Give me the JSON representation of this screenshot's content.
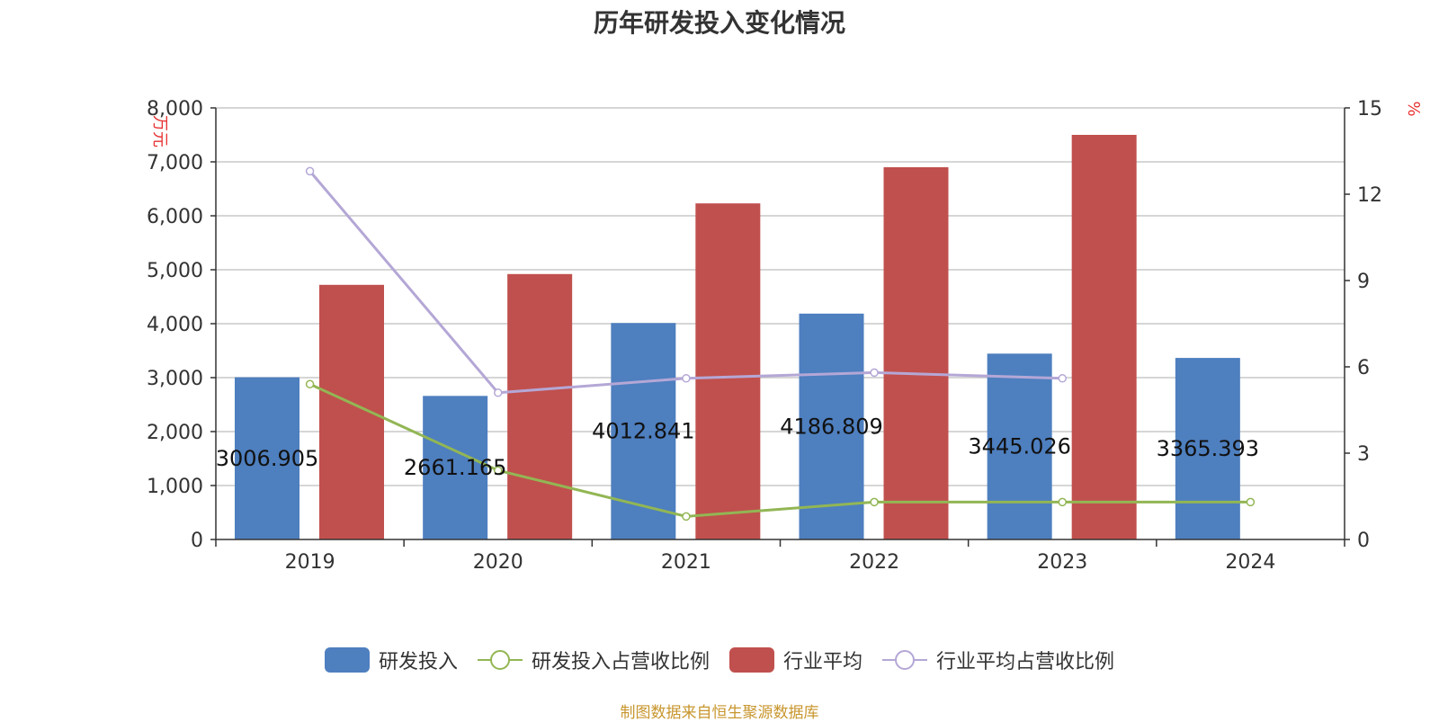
{
  "chart_data": {
    "type": "bar",
    "title": "历年研发投入变化情况",
    "categories": [
      "2019",
      "2020",
      "2021",
      "2022",
      "2023",
      "2024"
    ],
    "y_left": {
      "label": "万元",
      "ylim": [
        0,
        8000
      ],
      "ticks": [
        "0",
        "1,000",
        "2,000",
        "3,000",
        "4,000",
        "5,000",
        "6,000",
        "7,000",
        "8,000"
      ]
    },
    "y_right": {
      "label": "%",
      "ylim": [
        0,
        15
      ],
      "ticks": [
        "0",
        "3",
        "6",
        "9",
        "12",
        "15"
      ]
    },
    "grid": true,
    "legend_position": "bottom",
    "series": [
      {
        "name": "研发投入",
        "kind": "bar",
        "axis": "left",
        "color": "#4e7fbf",
        "values": [
          3006.905,
          2661.165,
          4012.841,
          4186.809,
          3445.026,
          3365.393
        ],
        "labels": [
          "3006.905",
          "2661.165",
          "4012.841",
          "4186.809",
          "3445.026",
          "3365.393"
        ]
      },
      {
        "name": "研发投入占营收比例",
        "kind": "line",
        "axis": "right",
        "color": "#92b654",
        "values": [
          5.4,
          2.4,
          0.8,
          1.3,
          1.3,
          1.3
        ]
      },
      {
        "name": "行业平均",
        "kind": "bar",
        "axis": "left",
        "color": "#c0504d",
        "values": [
          4720,
          4920,
          6230,
          6900,
          7500,
          null
        ]
      },
      {
        "name": "行业平均占营收比例",
        "kind": "line",
        "axis": "right",
        "color": "#b4a7d6",
        "values": [
          12.8,
          5.1,
          5.6,
          5.8,
          5.6,
          null
        ]
      }
    ]
  },
  "source_note": "制图数据来自恒生聚源数据库"
}
